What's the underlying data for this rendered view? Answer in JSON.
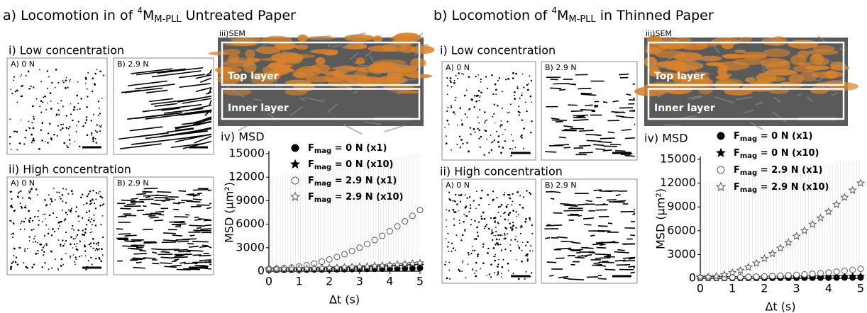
{
  "panels": [
    {
      "title": [
        "a) Locomotion in  of ",
        "4",
        "M",
        "M-PLL",
        " Untreated Paper"
      ],
      "low": "i) Low concentration",
      "high": "ii) High concentration",
      "low_images": [
        "A) 0 N",
        "B) 2.9 N"
      ],
      "high_images": [
        "A) 0 N",
        "B) 2.9 N"
      ],
      "sem": "iii)SEM",
      "top_layer": "Top layer",
      "inner_layer": "Inner layer",
      "msd": "iv) MSD"
    },
    {
      "title": [
        "b) Locomotion of ",
        "4",
        "M",
        "M-PLL",
        " in Thinned Paper"
      ],
      "low": "i) Low concentration",
      "high": "ii) High concentration",
      "low_images": [
        "A) 0 N",
        "B) 2.9 N"
      ],
      "high_images": [
        "A) 0 N",
        "B) 2.9 N"
      ],
      "sem": "iii)SEM",
      "top_layer": "Top layer",
      "inner_layer": "Inner layer",
      "msd": "iv) MSD"
    }
  ],
  "chart_data": [
    {
      "type": "scatter",
      "x_label": "Δt (s)",
      "y_label": "MSD (μm²)",
      "x": [
        0,
        0.25,
        0.5,
        0.75,
        1,
        1.25,
        1.5,
        1.75,
        2,
        2.25,
        2.5,
        2.75,
        3,
        3.25,
        3.5,
        3.75,
        4,
        4.25,
        4.5,
        4.75,
        5
      ],
      "xlim": [
        0,
        5
      ],
      "xticks": [
        0,
        1,
        2,
        3,
        4,
        5
      ],
      "ylim": [
        0,
        15000
      ],
      "yticks": [
        0,
        3000,
        6000,
        9000,
        12000,
        15000
      ],
      "series": [
        {
          "name": "Fmag = 0 N (x1)",
          "color": "#000000",
          "marker": "filled-circle",
          "values": [
            200,
            200,
            202,
            205,
            208,
            213,
            218,
            225,
            232,
            241,
            250,
            261,
            272,
            285,
            298,
            313,
            328,
            345,
            362,
            381,
            400
          ]
        },
        {
          "name": "Fmag = 0 N (x10)",
          "color": "#000000",
          "marker": "filled-star",
          "values": [
            250,
            251,
            255,
            261,
            270,
            281,
            295,
            311,
            330,
            351,
            375,
            401,
            430,
            461,
            495,
            531,
            570,
            611,
            655,
            701,
            750
          ]
        },
        {
          "name": "Fmag = 2.9 N (x1)",
          "color": "#555555",
          "marker": "open-circle",
          "values": [
            300,
            319,
            375,
            469,
            600,
            769,
            975,
            1219,
            1500,
            1819,
            2175,
            2569,
            3000,
            3469,
            3975,
            4519,
            5100,
            5719,
            6375,
            7069,
            7800
          ]
        },
        {
          "name": "Fmag = 2.9 N (x10)",
          "color": "#555555",
          "marker": "open-star",
          "values": [
            300,
            302,
            308,
            317,
            330,
            347,
            368,
            392,
            420,
            452,
            488,
            527,
            570,
            617,
            668,
            722,
            780,
            842,
            908,
            977,
            1050
          ]
        }
      ]
    },
    {
      "type": "scatter",
      "x_label": "Δt (s)",
      "y_label": "MSD (μm²)",
      "x": [
        0,
        0.25,
        0.5,
        0.75,
        1,
        1.25,
        1.5,
        1.75,
        2,
        2.25,
        2.5,
        2.75,
        3,
        3.25,
        3.5,
        3.75,
        4,
        4.25,
        4.5,
        4.75,
        5
      ],
      "xlim": [
        0,
        5
      ],
      "xticks": [
        0,
        1,
        2,
        3,
        4,
        5
      ],
      "ylim": [
        0,
        15000
      ],
      "yticks": [
        0,
        3000,
        6000,
        9000,
        12000,
        15000
      ],
      "series": [
        {
          "name": "Fmag = 0 N (x1)",
          "color": "#000000",
          "marker": "filled-circle",
          "values": [
            50,
            50,
            51,
            52,
            53,
            54,
            55,
            57,
            59,
            61,
            63,
            65,
            68,
            71,
            74,
            77,
            81,
            85,
            89,
            94,
            100
          ]
        },
        {
          "name": "Fmag = 0 N (x10)",
          "color": "#000000",
          "marker": "filled-star",
          "values": [
            80,
            81,
            83,
            86,
            90,
            95,
            100,
            106,
            113,
            120,
            128,
            137,
            146,
            156,
            167,
            178,
            190,
            203,
            217,
            233,
            250
          ]
        },
        {
          "name": "Fmag = 2.9 N (x1)",
          "color": "#555555",
          "marker": "open-circle",
          "values": [
            100,
            100,
            105,
            115,
            130,
            150,
            175,
            205,
            240,
            280,
            325,
            375,
            430,
            490,
            560,
            640,
            730,
            830,
            940,
            1060,
            1200
          ]
        },
        {
          "name": "Fmag = 2.9 N (x10)",
          "color": "#555555",
          "marker": "open-star",
          "values": [
            150,
            160,
            250,
            450,
            700,
            1000,
            1400,
            1900,
            2500,
            3100,
            3800,
            4500,
            5300,
            6000,
            6800,
            7600,
            8400,
            9300,
            10200,
            11100,
            12000
          ]
        }
      ]
    }
  ]
}
